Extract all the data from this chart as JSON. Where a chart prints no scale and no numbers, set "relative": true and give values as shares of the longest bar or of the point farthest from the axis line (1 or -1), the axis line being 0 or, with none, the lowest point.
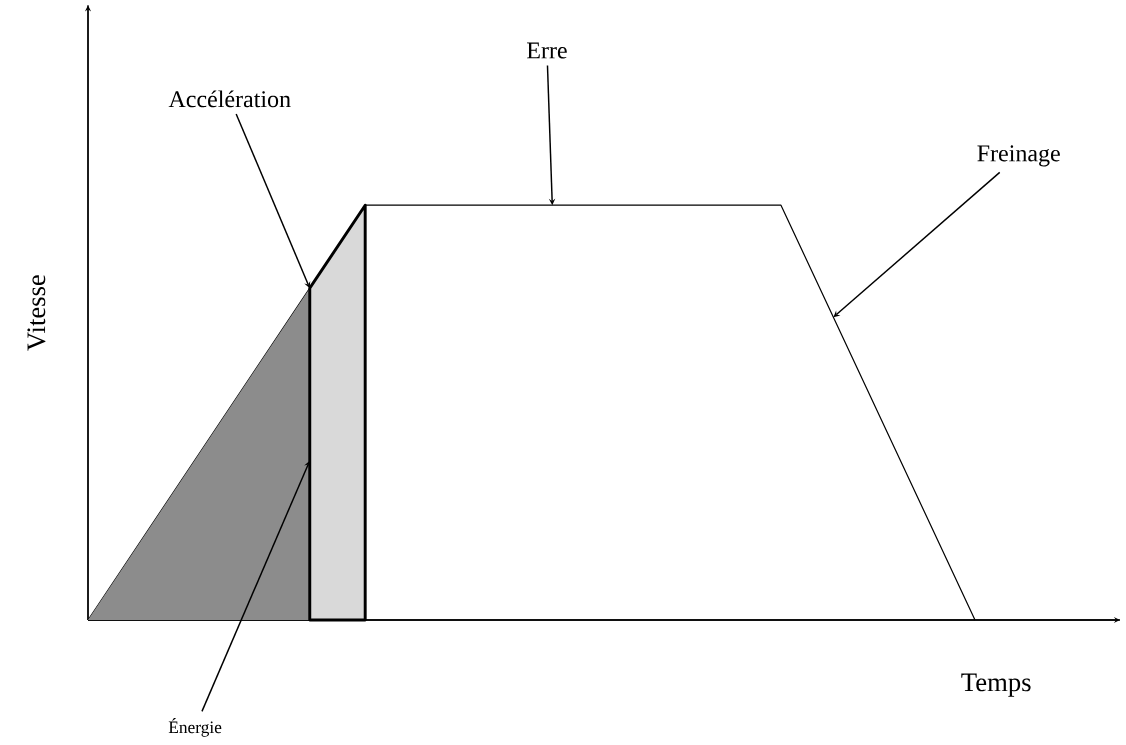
{
  "chart_data": {
    "type": "line",
    "relative": true,
    "xlabel": "Temps",
    "ylabel": "Vitesse",
    "categories": [
      null,
      null,
      null,
      null,
      null,
      null,
      null,
      null,
      null,
      null,
      null,
      null,
      null,
      null,
      null,
      null,
      null,
      null,
      null,
      null,
      null,
      null,
      null,
      null,
      null,
      null,
      null,
      null,
      null,
      null,
      null,
      null,
      null
    ],
    "series": [
      {
        "color": "#000000",
        "values": [
          0,
          null,
          null,
          null,
          null,
          null,
          null,
          null,
          0.8,
          null,
          1,
          null,
          null,
          null,
          null,
          null,
          null,
          null,
          null,
          null,
          null,
          null,
          null,
          null,
          null,
          1,
          null,
          null,
          null,
          null,
          null,
          null,
          0
        ]
      }
    ],
    "annotations": [
      "Accélération",
      "Erre",
      "Freinage",
      "Énergie"
    ]
  }
}
